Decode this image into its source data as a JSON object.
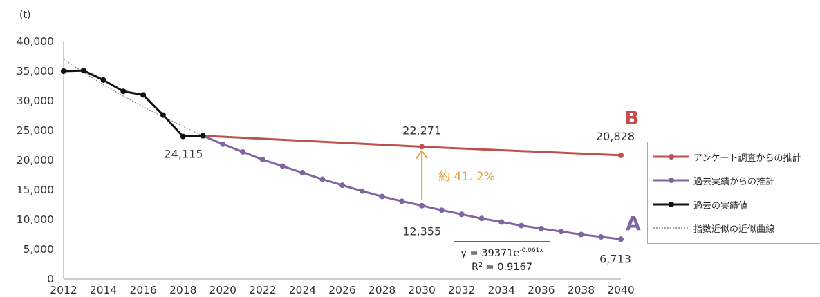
{
  "chart_data": {
    "type": "line",
    "unit_label": "(t)",
    "x_ticks": [
      "2012",
      "2014",
      "2016",
      "2018",
      "2020",
      "2022",
      "2024",
      "2026",
      "2028",
      "2030",
      "2032",
      "2034",
      "2036",
      "2038",
      "2040"
    ],
    "y_ticks": [
      "0",
      "5,000",
      "10,000",
      "15,000",
      "20,000",
      "25,000",
      "30,000",
      "35,000",
      "40,000"
    ],
    "xlim": [
      2012,
      2040
    ],
    "ylim": [
      0,
      40000
    ],
    "grid": false,
    "legend_position": "right",
    "series": [
      {
        "name": "アンケート調査からの推計",
        "color": "#c0504d",
        "x": [
          2019,
          2030,
          2040
        ],
        "y": [
          24115,
          22271,
          20828
        ]
      },
      {
        "name": "過去実績からの推計",
        "color": "#8064a2",
        "x": [
          2019,
          2020,
          2021,
          2022,
          2023,
          2024,
          2025,
          2026,
          2027,
          2028,
          2029,
          2030,
          2031,
          2032,
          2033,
          2034,
          2035,
          2036,
          2037,
          2038,
          2039,
          2040
        ],
        "y": [
          24115,
          22700,
          21400,
          20100,
          19000,
          17900,
          16800,
          15800,
          14800,
          13900,
          13100,
          12355,
          11600,
          10900,
          10200,
          9600,
          9000,
          8500,
          8000,
          7500,
          7100,
          6713
        ]
      },
      {
        "name": "過去の実績値",
        "color": "#111111",
        "x": [
          2012,
          2013,
          2014,
          2015,
          2016,
          2017,
          2018,
          2019
        ],
        "y": [
          35000,
          35100,
          33500,
          31600,
          31000,
          27600,
          24000,
          24115
        ]
      },
      {
        "name": "指数近似の近似曲線",
        "color": "#888888",
        "dashed": true,
        "x": [
          2012,
          2013,
          2014,
          2015,
          2016,
          2017,
          2018,
          2019
        ],
        "y": [
          37000,
          34800,
          32700,
          30800,
          29000,
          27300,
          25700,
          24100
        ]
      }
    ],
    "data_labels": [
      {
        "text": "24,115",
        "x": 2019,
        "y": 24115
      },
      {
        "text": "22,271",
        "x": 2030,
        "y": 22271
      },
      {
        "text": "20,828",
        "x": 2040,
        "y": 20828
      },
      {
        "text": "12,355",
        "x": 2030,
        "y": 12355
      },
      {
        "text": "6,713",
        "x": 2040,
        "y": 6713
      }
    ],
    "annotation": {
      "text": "約 41. 2%",
      "from_value": 12355,
      "to_value": 22271,
      "x": 2030,
      "color": "#e8a23b"
    },
    "series_markers": {
      "B": "B",
      "A": "A"
    },
    "marker_colors": {
      "B": "#c0504d",
      "A": "#8064a2"
    },
    "equation": {
      "prefix": "y = 39371e",
      "exponent": "-0.061x",
      "r2": "R² = 0.9167"
    }
  }
}
